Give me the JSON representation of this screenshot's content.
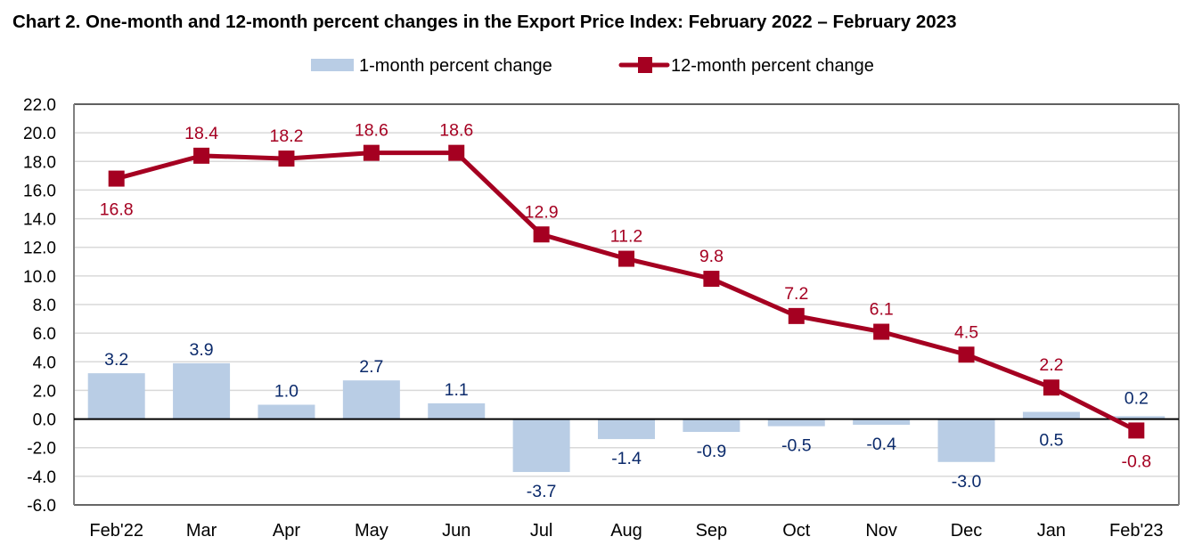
{
  "chart_data": {
    "type": "bar+line",
    "title": "Chart 2. One-month and 12-month percent changes in the Export Price Index: February 2022 – February 2023",
    "xlabel": "",
    "ylabel": "",
    "ylim": [
      -6.0,
      22.0
    ],
    "ytick_step": 2.0,
    "yticks": [
      "22.0",
      "20.0",
      "18.0",
      "16.0",
      "14.0",
      "12.0",
      "10.0",
      "8.0",
      "6.0",
      "4.0",
      "2.0",
      "0.0",
      "-2.0",
      "-4.0",
      "-6.0"
    ],
    "grid": true,
    "legend_position": "top-center",
    "categories": [
      "Feb'22",
      "Mar",
      "Apr",
      "May",
      "Jun",
      "Jul",
      "Aug",
      "Sep",
      "Oct",
      "Nov",
      "Dec",
      "Jan",
      "Feb'23"
    ],
    "series": [
      {
        "name": "1-month percent change",
        "type": "bar",
        "color": "#b9cde5",
        "label_color": "#0b2a6b",
        "values": [
          3.2,
          3.9,
          1.0,
          2.7,
          1.1,
          -3.7,
          -1.4,
          -0.9,
          -0.5,
          -0.4,
          -3.0,
          0.5,
          0.2
        ],
        "labels": [
          "3.2",
          "3.9",
          "1.0",
          "2.7",
          "1.1",
          "-3.7",
          "-1.4",
          "-0.9",
          "-0.5",
          "-0.4",
          "-3.0",
          "0.5",
          "0.2"
        ]
      },
      {
        "name": "12-month percent change",
        "type": "line",
        "marker": "square",
        "color": "#a50021",
        "label_color": "#a50021",
        "values": [
          16.8,
          18.4,
          18.2,
          18.6,
          18.6,
          12.9,
          11.2,
          9.8,
          7.2,
          6.1,
          4.5,
          2.2,
          -0.8
        ],
        "labels": [
          "16.8",
          "18.4",
          "18.2",
          "18.6",
          "18.6",
          "12.9",
          "11.2",
          "9.8",
          "7.2",
          "6.1",
          "4.5",
          "2.2",
          "-0.8"
        ]
      }
    ]
  }
}
